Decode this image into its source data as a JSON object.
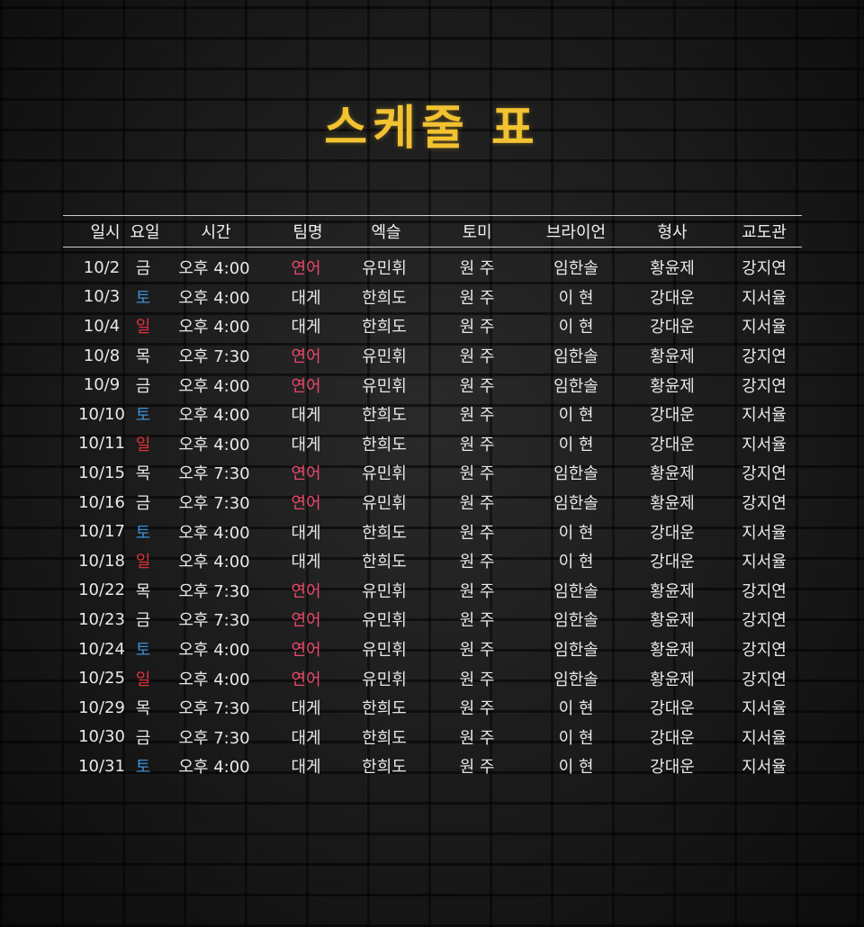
{
  "title": "스케줄 표",
  "colors": {
    "title": "#f2c230",
    "text": "#e8e8e8",
    "sunday": "#e0303c",
    "saturday": "#3a8fd8",
    "team_yeoneo": "#e8476a"
  },
  "headers": [
    "일시",
    "요일",
    "시간",
    "팀명",
    "엑슬",
    "토미",
    "브라이언",
    "형사",
    "교도관"
  ],
  "rows": [
    {
      "date": "10/2",
      "day": "금",
      "time": "오후 4:00",
      "team": "연어",
      "ex": "유민휘",
      "tomi": "원 주",
      "brian": "임한솔",
      "detective": "황윤제",
      "warden": "강지연"
    },
    {
      "date": "10/3",
      "day": "토",
      "time": "오후 4:00",
      "team": "대게",
      "ex": "한희도",
      "tomi": "원 주",
      "brian": "이 현",
      "detective": "강대운",
      "warden": "지서율"
    },
    {
      "date": "10/4",
      "day": "일",
      "time": "오후 4:00",
      "team": "대게",
      "ex": "한희도",
      "tomi": "원 주",
      "brian": "이 현",
      "detective": "강대운",
      "warden": "지서율"
    },
    {
      "date": "10/8",
      "day": "목",
      "time": "오후 7:30",
      "team": "연어",
      "ex": "유민휘",
      "tomi": "원 주",
      "brian": "임한솔",
      "detective": "황윤제",
      "warden": "강지연"
    },
    {
      "date": "10/9",
      "day": "금",
      "time": "오후 4:00",
      "team": "연어",
      "ex": "유민휘",
      "tomi": "원 주",
      "brian": "임한솔",
      "detective": "황윤제",
      "warden": "강지연"
    },
    {
      "date": "10/10",
      "day": "토",
      "time": "오후 4:00",
      "team": "대게",
      "ex": "한희도",
      "tomi": "원 주",
      "brian": "이 현",
      "detective": "강대운",
      "warden": "지서율"
    },
    {
      "date": "10/11",
      "day": "일",
      "time": "오후 4:00",
      "team": "대게",
      "ex": "한희도",
      "tomi": "원 주",
      "brian": "이 현",
      "detective": "강대운",
      "warden": "지서율"
    },
    {
      "date": "10/15",
      "day": "목",
      "time": "오후 7:30",
      "team": "연어",
      "ex": "유민휘",
      "tomi": "원 주",
      "brian": "임한솔",
      "detective": "황윤제",
      "warden": "강지연"
    },
    {
      "date": "10/16",
      "day": "금",
      "time": "오후 7:30",
      "team": "연어",
      "ex": "유민휘",
      "tomi": "원 주",
      "brian": "임한솔",
      "detective": "황윤제",
      "warden": "강지연"
    },
    {
      "date": "10/17",
      "day": "토",
      "time": "오후 4:00",
      "team": "대게",
      "ex": "한희도",
      "tomi": "원 주",
      "brian": "이 현",
      "detective": "강대운",
      "warden": "지서율"
    },
    {
      "date": "10/18",
      "day": "일",
      "time": "오후 4:00",
      "team": "대게",
      "ex": "한희도",
      "tomi": "원 주",
      "brian": "이 현",
      "detective": "강대운",
      "warden": "지서율"
    },
    {
      "date": "10/22",
      "day": "목",
      "time": "오후 7:30",
      "team": "연어",
      "ex": "유민휘",
      "tomi": "원 주",
      "brian": "임한솔",
      "detective": "황윤제",
      "warden": "강지연"
    },
    {
      "date": "10/23",
      "day": "금",
      "time": "오후 7:30",
      "team": "연어",
      "ex": "유민휘",
      "tomi": "원 주",
      "brian": "임한솔",
      "detective": "황윤제",
      "warden": "강지연"
    },
    {
      "date": "10/24",
      "day": "토",
      "time": "오후 4:00",
      "team": "연어",
      "ex": "유민휘",
      "tomi": "원 주",
      "brian": "임한솔",
      "detective": "황윤제",
      "warden": "강지연"
    },
    {
      "date": "10/25",
      "day": "일",
      "time": "오후 4:00",
      "team": "연어",
      "ex": "유민휘",
      "tomi": "원 주",
      "brian": "임한솔",
      "detective": "황윤제",
      "warden": "강지연"
    },
    {
      "date": "10/29",
      "day": "목",
      "time": "오후 7:30",
      "team": "대게",
      "ex": "한희도",
      "tomi": "원 주",
      "brian": "이 현",
      "detective": "강대운",
      "warden": "지서율"
    },
    {
      "date": "10/30",
      "day": "금",
      "time": "오후 7:30",
      "team": "대게",
      "ex": "한희도",
      "tomi": "원 주",
      "brian": "이 현",
      "detective": "강대운",
      "warden": "지서율"
    },
    {
      "date": "10/31",
      "day": "토",
      "time": "오후 4:00",
      "team": "대게",
      "ex": "한희도",
      "tomi": "원 주",
      "brian": "이 현",
      "detective": "강대운",
      "warden": "지서율"
    }
  ]
}
